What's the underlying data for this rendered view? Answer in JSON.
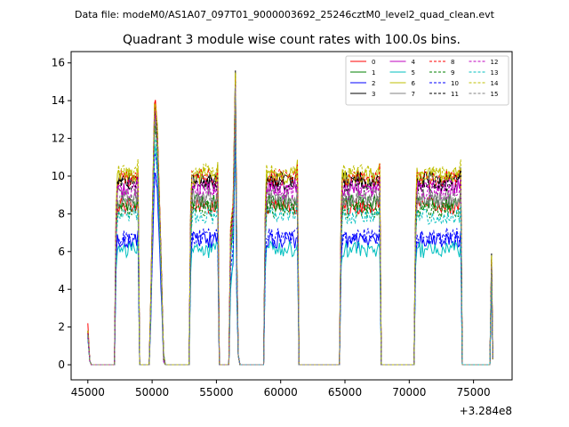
{
  "chart_data": {
    "type": "line",
    "suptitle": "Data file: modeM0/AS1A07_097T01_9000003692_25246cztM0_level2_quad_clean.evt",
    "title": "Quadrant 3 module wise count rates with 100.0s bins.",
    "xlabel": "",
    "ylabel": "",
    "x_offset_label": "+3.284e8",
    "xlim": [
      43700,
      78000
    ],
    "ylim": [
      -0.8,
      16.6
    ],
    "xticks": [
      45000,
      50000,
      55000,
      60000,
      65000,
      70000,
      75000
    ],
    "xtick_labels": [
      "45000",
      "50000",
      "55000",
      "60000",
      "65000",
      "70000",
      "75000"
    ],
    "yticks": [
      0,
      2,
      4,
      6,
      8,
      10,
      12,
      14,
      16
    ],
    "ytick_labels": [
      "0",
      "2",
      "4",
      "6",
      "8",
      "10",
      "12",
      "14",
      "16"
    ],
    "grid": false,
    "legend_position": "top-right",
    "x_note": "x values are seconds relative to the offset 3.284e8; curves are approximate envelopes of each module's rate",
    "segments": [
      {
        "start": 45000,
        "end": 45150
      },
      {
        "start": 47200,
        "end": 48900
      },
      {
        "start": 49900,
        "end": 50900
      },
      {
        "start": 53000,
        "end": 55100
      },
      {
        "start": 56100,
        "end": 56700
      },
      {
        "start": 58800,
        "end": 61300
      },
      {
        "start": 64700,
        "end": 67700
      },
      {
        "start": 70500,
        "end": 74000
      },
      {
        "start": 76400,
        "end": 76500
      }
    ],
    "series": [
      {
        "name": "0",
        "color": "#ff0000",
        "dashed": false,
        "level": 8.4,
        "bump": 14.6,
        "spike": 15.3,
        "start_val": 2.2,
        "end_val": 5.2
      },
      {
        "name": "1",
        "color": "#008000",
        "dashed": false,
        "level": 8.6,
        "bump": 13.2,
        "spike": 14.8,
        "start_val": 1.8,
        "end_val": 5.0
      },
      {
        "name": "2",
        "color": "#0000ff",
        "dashed": false,
        "level": 6.6,
        "bump": 10.4,
        "spike": 13.0,
        "start_val": 1.5,
        "end_val": 4.5
      },
      {
        "name": "3",
        "color": "#000000",
        "dashed": false,
        "level": 9.8,
        "bump": 14.2,
        "spike": 15.6,
        "start_val": 1.8,
        "end_val": 5.9
      },
      {
        "name": "4",
        "color": "#bf00bf",
        "dashed": false,
        "level": 9.4,
        "bump": 14.0,
        "spike": 15.2,
        "start_val": 1.7,
        "end_val": 5.5
      },
      {
        "name": "5",
        "color": "#00bfbf",
        "dashed": false,
        "level": 6.1,
        "bump": 11.8,
        "spike": 12.6,
        "start_val": 1.4,
        "end_val": 4.6
      },
      {
        "name": "6",
        "color": "#bfbf00",
        "dashed": false,
        "level": 10.0,
        "bump": 14.3,
        "spike": 15.4,
        "start_val": 1.8,
        "end_val": 5.7
      },
      {
        "name": "7",
        "color": "#808080",
        "dashed": false,
        "level": 8.9,
        "bump": 13.5,
        "spike": 14.9,
        "start_val": 1.6,
        "end_val": 5.1
      },
      {
        "name": "8",
        "color": "#ff0000",
        "dashed": true,
        "level": 9.9,
        "bump": 14.1,
        "spike": 15.1,
        "start_val": 1.7,
        "end_val": 5.6
      },
      {
        "name": "9",
        "color": "#008000",
        "dashed": true,
        "level": 8.2,
        "bump": 12.8,
        "spike": 14.5,
        "start_val": 1.6,
        "end_val": 5.0
      },
      {
        "name": "10",
        "color": "#0000ff",
        "dashed": true,
        "level": 6.8,
        "bump": 11.5,
        "spike": 13.4,
        "start_val": 1.5,
        "end_val": 4.7
      },
      {
        "name": "11",
        "color": "#000000",
        "dashed": true,
        "level": 9.6,
        "bump": 13.9,
        "spike": 15.0,
        "start_val": 1.7,
        "end_val": 5.6
      },
      {
        "name": "12",
        "color": "#bf00bf",
        "dashed": true,
        "level": 9.2,
        "bump": 13.6,
        "spike": 14.8,
        "start_val": 1.7,
        "end_val": 5.3
      },
      {
        "name": "13",
        "color": "#00bfbf",
        "dashed": true,
        "level": 7.9,
        "bump": 12.3,
        "spike": 14.2,
        "start_val": 1.6,
        "end_val": 4.9
      },
      {
        "name": "14",
        "color": "#bfbf00",
        "dashed": true,
        "level": 10.2,
        "bump": 14.4,
        "spike": 15.5,
        "start_val": 1.8,
        "end_val": 5.8
      },
      {
        "name": "15",
        "color": "#808080",
        "dashed": true,
        "level": 8.7,
        "bump": 13.3,
        "spike": 14.7,
        "start_val": 1.6,
        "end_val": 5.2
      }
    ]
  }
}
